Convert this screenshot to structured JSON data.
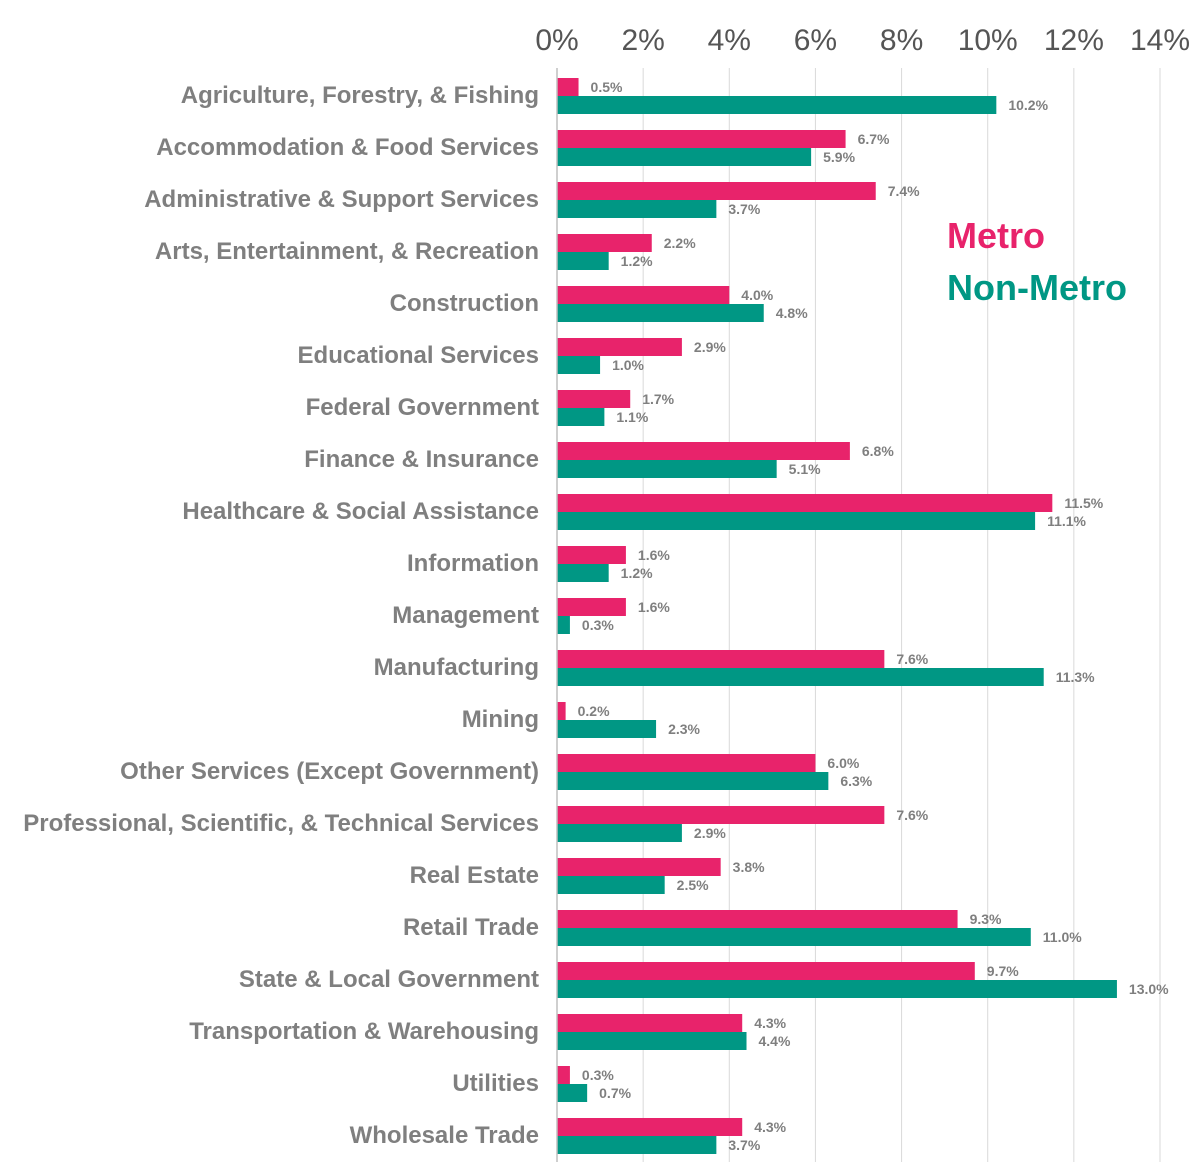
{
  "chart_data": {
    "type": "bar",
    "orientation": "horizontal",
    "categories": [
      "Agriculture, Forestry, & Fishing",
      "Accommodation & Food Services",
      "Administrative & Support Services",
      "Arts, Entertainment, & Recreation",
      "Construction",
      "Educational Services",
      "Federal Government",
      "Finance & Insurance",
      "Healthcare & Social Assistance",
      "Information",
      "Management",
      "Manufacturing",
      "Mining",
      "Other Services (Except Government)",
      "Professional, Scientific, & Technical Services",
      "Real Estate",
      "Retail Trade",
      "State & Local Government",
      "Transportation & Warehousing",
      "Utilities",
      "Wholesale Trade"
    ],
    "series": [
      {
        "name": "Metro",
        "color": "#e8236b",
        "values": [
          0.5,
          6.7,
          7.4,
          2.2,
          4.0,
          2.9,
          1.7,
          6.8,
          11.5,
          1.6,
          1.6,
          7.6,
          0.2,
          6.0,
          7.6,
          3.8,
          9.3,
          9.7,
          4.3,
          0.3,
          4.3
        ],
        "labels": [
          "0.5%",
          "6.7%",
          "7.4%",
          "2.2%",
          "4.0%",
          "2.9%",
          "1.7%",
          "6.8%",
          "11.5%",
          "1.6%",
          "1.6%",
          "7.6%",
          "0.2%",
          "6.0%",
          "7.6%",
          "3.8%",
          "9.3%",
          "9.7%",
          "4.3%",
          "0.3%",
          "4.3%"
        ]
      },
      {
        "name": "Non-Metro",
        "color": "#009784",
        "values": [
          10.2,
          5.9,
          3.7,
          1.2,
          4.8,
          1.0,
          1.1,
          5.1,
          11.1,
          1.2,
          0.3,
          11.3,
          2.3,
          6.3,
          2.9,
          2.5,
          11.0,
          13.0,
          4.4,
          0.7,
          3.7
        ],
        "labels": [
          "10.2%",
          "5.9%",
          "3.7%",
          "1.2%",
          "4.8%",
          "1.0%",
          "1.1%",
          "5.1%",
          "11.1%",
          "1.2%",
          "0.3%",
          "11.3%",
          "2.3%",
          "6.3%",
          "2.9%",
          "2.5%",
          "11.0%",
          "13.0%",
          "4.4%",
          "0.7%",
          "3.7%"
        ]
      }
    ],
    "xlim": [
      0,
      14
    ],
    "xticks": [
      0,
      2,
      4,
      6,
      8,
      10,
      12,
      14
    ],
    "xtick_labels": [
      "0%",
      "2%",
      "4%",
      "6%",
      "8%",
      "10%",
      "12%",
      "14%"
    ],
    "x_axis_position": "top",
    "grid": true,
    "gridline_color": "#d9d9d9",
    "legend_position": "top-right",
    "label_color": "#7f7f7f"
  }
}
